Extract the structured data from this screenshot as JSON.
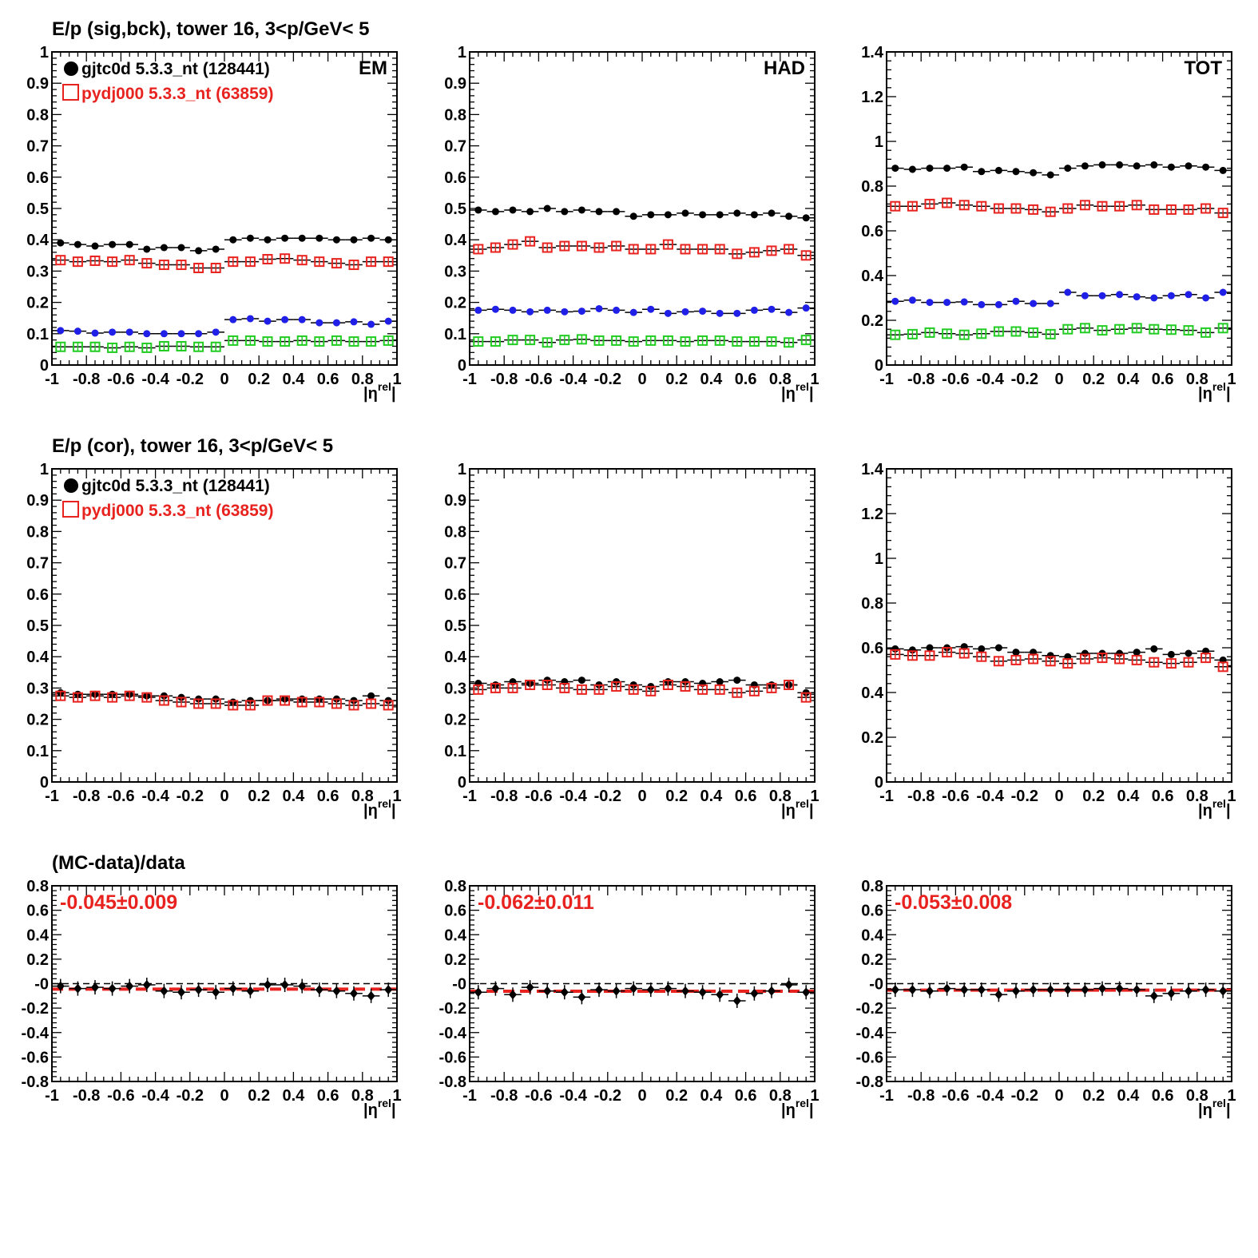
{
  "colors": {
    "data": "#000000",
    "mc": "#e8231f",
    "blue": "#1f1fe8",
    "green": "#22cc22",
    "fit": "#e8231f"
  },
  "rows": [
    {
      "title": "E/p (sig,bck), tower 16,  3<p/GeV< 5",
      "legend": true
    },
    {
      "title": "E/p (cor), tower 16,  3<p/GeV< 5",
      "legend": true
    },
    {
      "title": "(MC-data)/data",
      "legend": false
    }
  ],
  "legend": {
    "data_label": "gjtc0d 5.3.3_nt (128441)",
    "mc_label": "pydj000 5.3.3_nt (63859)"
  },
  "x_axis": {
    "label": "|η",
    "label_sup": "rel",
    "label_end": "|",
    "range": [
      -1,
      1
    ],
    "tick_labels": [
      "-1",
      "-0.8",
      "-0.6",
      "-0.4",
      "-0.2",
      "0",
      "0.2",
      "0.4",
      "0.6",
      "0.8",
      "1"
    ]
  },
  "chart_data": [
    {
      "type": "scatter",
      "panel": "EM",
      "label": "EM",
      "ylim": [
        0,
        1
      ],
      "yticks": [
        "0",
        "0.1",
        "0.2",
        "0.3",
        "0.4",
        "0.5",
        "0.6",
        "0.7",
        "0.8",
        "0.9",
        "1"
      ],
      "x": [
        -0.95,
        -0.85,
        -0.75,
        -0.65,
        -0.55,
        -0.45,
        -0.35,
        -0.25,
        -0.15,
        -0.05,
        0.05,
        0.15,
        0.25,
        0.35,
        0.45,
        0.55,
        0.65,
        0.75,
        0.85,
        0.95
      ],
      "series": [
        {
          "role": "data",
          "marker": "circle",
          "values": [
            0.39,
            0.385,
            0.38,
            0.385,
            0.385,
            0.37,
            0.375,
            0.375,
            0.365,
            0.37,
            0.4,
            0.405,
            0.4,
            0.405,
            0.405,
            0.405,
            0.4,
            0.4,
            0.405,
            0.4
          ]
        },
        {
          "role": "mc",
          "marker": "square-open",
          "values": [
            0.335,
            0.33,
            0.333,
            0.33,
            0.335,
            0.325,
            0.32,
            0.32,
            0.31,
            0.31,
            0.33,
            0.33,
            0.338,
            0.34,
            0.335,
            0.33,
            0.325,
            0.32,
            0.33,
            0.33
          ]
        },
        {
          "role": "blue",
          "marker": "circle",
          "values": [
            0.11,
            0.108,
            0.102,
            0.105,
            0.105,
            0.1,
            0.1,
            0.1,
            0.1,
            0.105,
            0.145,
            0.148,
            0.14,
            0.145,
            0.145,
            0.135,
            0.135,
            0.138,
            0.13,
            0.14
          ]
        },
        {
          "role": "green",
          "marker": "square-open",
          "values": [
            0.058,
            0.058,
            0.058,
            0.055,
            0.058,
            0.055,
            0.06,
            0.06,
            0.058,
            0.058,
            0.078,
            0.078,
            0.075,
            0.075,
            0.078,
            0.075,
            0.078,
            0.075,
            0.075,
            0.078
          ]
        }
      ]
    },
    {
      "type": "scatter",
      "panel": "HAD",
      "label": "HAD",
      "ylim": [
        0,
        1
      ],
      "yticks": [
        "0",
        "0.1",
        "0.2",
        "0.3",
        "0.4",
        "0.5",
        "0.6",
        "0.7",
        "0.8",
        "0.9",
        "1"
      ],
      "x": [
        -0.95,
        -0.85,
        -0.75,
        -0.65,
        -0.55,
        -0.45,
        -0.35,
        -0.25,
        -0.15,
        -0.05,
        0.05,
        0.15,
        0.25,
        0.35,
        0.45,
        0.55,
        0.65,
        0.75,
        0.85,
        0.95
      ],
      "series": [
        {
          "role": "data",
          "marker": "circle",
          "values": [
            0.495,
            0.49,
            0.495,
            0.49,
            0.5,
            0.49,
            0.495,
            0.49,
            0.49,
            0.475,
            0.48,
            0.48,
            0.485,
            0.48,
            0.48,
            0.485,
            0.48,
            0.485,
            0.475,
            0.47
          ]
        },
        {
          "role": "mc",
          "marker": "square-open",
          "values": [
            0.37,
            0.375,
            0.385,
            0.395,
            0.375,
            0.38,
            0.38,
            0.375,
            0.38,
            0.37,
            0.37,
            0.385,
            0.37,
            0.37,
            0.37,
            0.355,
            0.36,
            0.365,
            0.37,
            0.35
          ]
        },
        {
          "role": "blue",
          "marker": "circle",
          "values": [
            0.175,
            0.178,
            0.175,
            0.17,
            0.175,
            0.17,
            0.172,
            0.18,
            0.175,
            0.168,
            0.178,
            0.165,
            0.17,
            0.172,
            0.165,
            0.165,
            0.175,
            0.178,
            0.168,
            0.182
          ]
        },
        {
          "role": "green",
          "marker": "square-open",
          "values": [
            0.075,
            0.075,
            0.08,
            0.08,
            0.072,
            0.08,
            0.082,
            0.078,
            0.078,
            0.075,
            0.078,
            0.078,
            0.075,
            0.078,
            0.078,
            0.075,
            0.075,
            0.075,
            0.072,
            0.08
          ]
        }
      ]
    },
    {
      "type": "scatter",
      "panel": "TOT",
      "label": "TOT",
      "ylim": [
        0,
        1.4
      ],
      "yticks": [
        "0",
        "0.2",
        "0.4",
        "0.6",
        "0.8",
        "1",
        "1.2",
        "1.4"
      ],
      "x": [
        -0.95,
        -0.85,
        -0.75,
        -0.65,
        -0.55,
        -0.45,
        -0.35,
        -0.25,
        -0.15,
        -0.05,
        0.05,
        0.15,
        0.25,
        0.35,
        0.45,
        0.55,
        0.65,
        0.75,
        0.85,
        0.95
      ],
      "series": [
        {
          "role": "data",
          "marker": "circle",
          "values": [
            0.88,
            0.875,
            0.88,
            0.88,
            0.885,
            0.865,
            0.87,
            0.865,
            0.86,
            0.85,
            0.88,
            0.89,
            0.895,
            0.895,
            0.89,
            0.895,
            0.885,
            0.89,
            0.885,
            0.87
          ]
        },
        {
          "role": "mc",
          "marker": "square-open",
          "values": [
            0.71,
            0.71,
            0.72,
            0.725,
            0.715,
            0.71,
            0.7,
            0.7,
            0.695,
            0.685,
            0.7,
            0.715,
            0.71,
            0.71,
            0.715,
            0.695,
            0.695,
            0.695,
            0.7,
            0.68
          ]
        },
        {
          "role": "blue",
          "marker": "circle",
          "values": [
            0.285,
            0.29,
            0.28,
            0.28,
            0.282,
            0.27,
            0.27,
            0.285,
            0.275,
            0.275,
            0.325,
            0.31,
            0.31,
            0.315,
            0.305,
            0.3,
            0.31,
            0.315,
            0.3,
            0.325
          ]
        },
        {
          "role": "green",
          "marker": "square-open",
          "values": [
            0.135,
            0.138,
            0.145,
            0.14,
            0.135,
            0.14,
            0.15,
            0.15,
            0.145,
            0.138,
            0.16,
            0.165,
            0.155,
            0.16,
            0.165,
            0.16,
            0.158,
            0.155,
            0.145,
            0.165
          ]
        }
      ]
    },
    {
      "type": "scatter",
      "panel": "EM-cor",
      "ylim": [
        0,
        1
      ],
      "yticks": [
        "0",
        "0.1",
        "0.2",
        "0.3",
        "0.4",
        "0.5",
        "0.6",
        "0.7",
        "0.8",
        "0.9",
        "1"
      ],
      "x": [
        -0.95,
        -0.85,
        -0.75,
        -0.65,
        -0.55,
        -0.45,
        -0.35,
        -0.25,
        -0.15,
        -0.05,
        0.05,
        0.15,
        0.25,
        0.35,
        0.45,
        0.55,
        0.65,
        0.75,
        0.85,
        0.95
      ],
      "series": [
        {
          "role": "data",
          "marker": "circle",
          "values": [
            0.285,
            0.28,
            0.28,
            0.28,
            0.28,
            0.275,
            0.275,
            0.27,
            0.265,
            0.265,
            0.255,
            0.26,
            0.26,
            0.265,
            0.265,
            0.265,
            0.265,
            0.26,
            0.275,
            0.26
          ]
        },
        {
          "role": "mc",
          "marker": "square-open",
          "values": [
            0.275,
            0.27,
            0.275,
            0.27,
            0.275,
            0.27,
            0.26,
            0.255,
            0.25,
            0.25,
            0.245,
            0.245,
            0.26,
            0.26,
            0.255,
            0.255,
            0.25,
            0.245,
            0.25,
            0.245
          ]
        }
      ]
    },
    {
      "type": "scatter",
      "panel": "HAD-cor",
      "ylim": [
        0,
        1
      ],
      "yticks": [
        "0",
        "0.1",
        "0.2",
        "0.3",
        "0.4",
        "0.5",
        "0.6",
        "0.7",
        "0.8",
        "0.9",
        "1"
      ],
      "x": [
        -0.95,
        -0.85,
        -0.75,
        -0.65,
        -0.55,
        -0.45,
        -0.35,
        -0.25,
        -0.15,
        -0.05,
        0.05,
        0.15,
        0.25,
        0.35,
        0.45,
        0.55,
        0.65,
        0.75,
        0.85,
        0.95
      ],
      "series": [
        {
          "role": "data",
          "marker": "circle",
          "values": [
            0.315,
            0.31,
            0.32,
            0.315,
            0.325,
            0.32,
            0.325,
            0.31,
            0.32,
            0.31,
            0.305,
            0.32,
            0.32,
            0.315,
            0.32,
            0.325,
            0.31,
            0.31,
            0.31,
            0.285
          ]
        },
        {
          "role": "mc",
          "marker": "square-open",
          "values": [
            0.295,
            0.3,
            0.3,
            0.31,
            0.31,
            0.3,
            0.295,
            0.295,
            0.305,
            0.295,
            0.29,
            0.31,
            0.305,
            0.295,
            0.295,
            0.285,
            0.29,
            0.3,
            0.31,
            0.27
          ]
        }
      ]
    },
    {
      "type": "scatter",
      "panel": "TOT-cor",
      "ylim": [
        0,
        1.4
      ],
      "yticks": [
        "0",
        "0.2",
        "0.4",
        "0.6",
        "0.8",
        "1",
        "1.2",
        "1.4"
      ],
      "x": [
        -0.95,
        -0.85,
        -0.75,
        -0.65,
        -0.55,
        -0.45,
        -0.35,
        -0.25,
        -0.15,
        -0.05,
        0.05,
        0.15,
        0.25,
        0.35,
        0.45,
        0.55,
        0.65,
        0.75,
        0.85,
        0.95
      ],
      "series": [
        {
          "role": "data",
          "marker": "circle",
          "values": [
            0.595,
            0.59,
            0.6,
            0.6,
            0.605,
            0.595,
            0.6,
            0.58,
            0.58,
            0.565,
            0.56,
            0.575,
            0.575,
            0.575,
            0.58,
            0.595,
            0.57,
            0.575,
            0.585,
            0.545
          ]
        },
        {
          "role": "mc",
          "marker": "square-open",
          "values": [
            0.57,
            0.565,
            0.565,
            0.58,
            0.575,
            0.56,
            0.54,
            0.545,
            0.55,
            0.54,
            0.53,
            0.55,
            0.555,
            0.55,
            0.545,
            0.535,
            0.53,
            0.535,
            0.555,
            0.515
          ]
        }
      ]
    },
    {
      "type": "scatter",
      "panel": "EM-ratio",
      "ylim": [
        -0.8,
        0.8
      ],
      "fit": -0.045,
      "fit_label": "-0.045±0.009",
      "yticks": [
        "-0.8",
        "-0.6",
        "-0.4",
        "-0.2",
        "-0",
        "0.2",
        "0.4",
        "0.6",
        "0.8"
      ],
      "x": [
        -0.95,
        -0.85,
        -0.75,
        -0.65,
        -0.55,
        -0.45,
        -0.35,
        -0.25,
        -0.15,
        -0.05,
        0.05,
        0.15,
        0.25,
        0.35,
        0.45,
        0.55,
        0.65,
        0.75,
        0.85,
        0.95
      ],
      "series": [
        {
          "role": "data",
          "marker": "diamond",
          "values": [
            -0.02,
            -0.04,
            -0.03,
            -0.04,
            -0.02,
            -0.01,
            -0.06,
            -0.07,
            -0.05,
            -0.07,
            -0.04,
            -0.06,
            -0.01,
            -0.01,
            -0.02,
            -0.05,
            -0.06,
            -0.08,
            -0.1,
            -0.05
          ]
        }
      ]
    },
    {
      "type": "scatter",
      "panel": "HAD-ratio",
      "ylim": [
        -0.8,
        0.8
      ],
      "fit": -0.062,
      "fit_label": "-0.062±0.011",
      "yticks": [
        "-0.8",
        "-0.6",
        "-0.4",
        "-0.2",
        "-0",
        "0.2",
        "0.4",
        "0.6",
        "0.8"
      ],
      "x": [
        -0.95,
        -0.85,
        -0.75,
        -0.65,
        -0.55,
        -0.45,
        -0.35,
        -0.25,
        -0.15,
        -0.05,
        0.05,
        0.15,
        0.25,
        0.35,
        0.45,
        0.55,
        0.65,
        0.75,
        0.85,
        0.95
      ],
      "series": [
        {
          "role": "data",
          "marker": "diamond",
          "values": [
            -0.07,
            -0.04,
            -0.09,
            -0.03,
            -0.06,
            -0.07,
            -0.11,
            -0.05,
            -0.06,
            -0.04,
            -0.05,
            -0.04,
            -0.06,
            -0.07,
            -0.09,
            -0.14,
            -0.08,
            -0.06,
            -0.01,
            -0.07
          ]
        }
      ]
    },
    {
      "type": "scatter",
      "panel": "TOT-ratio",
      "ylim": [
        -0.8,
        0.8
      ],
      "fit": -0.053,
      "fit_label": "-0.053±0.008",
      "yticks": [
        "-0.8",
        "-0.6",
        "-0.4",
        "-0.2",
        "-0",
        "0.2",
        "0.4",
        "0.6",
        "0.8"
      ],
      "x": [
        -0.95,
        -0.85,
        -0.75,
        -0.65,
        -0.55,
        -0.45,
        -0.35,
        -0.25,
        -0.15,
        -0.05,
        0.05,
        0.15,
        0.25,
        0.35,
        0.45,
        0.55,
        0.65,
        0.75,
        0.85,
        0.95
      ],
      "series": [
        {
          "role": "data",
          "marker": "diamond",
          "values": [
            -0.05,
            -0.05,
            -0.06,
            -0.04,
            -0.05,
            -0.05,
            -0.09,
            -0.06,
            -0.05,
            -0.05,
            -0.05,
            -0.05,
            -0.04,
            -0.04,
            -0.05,
            -0.1,
            -0.08,
            -0.06,
            -0.05,
            -0.06
          ]
        }
      ]
    }
  ]
}
